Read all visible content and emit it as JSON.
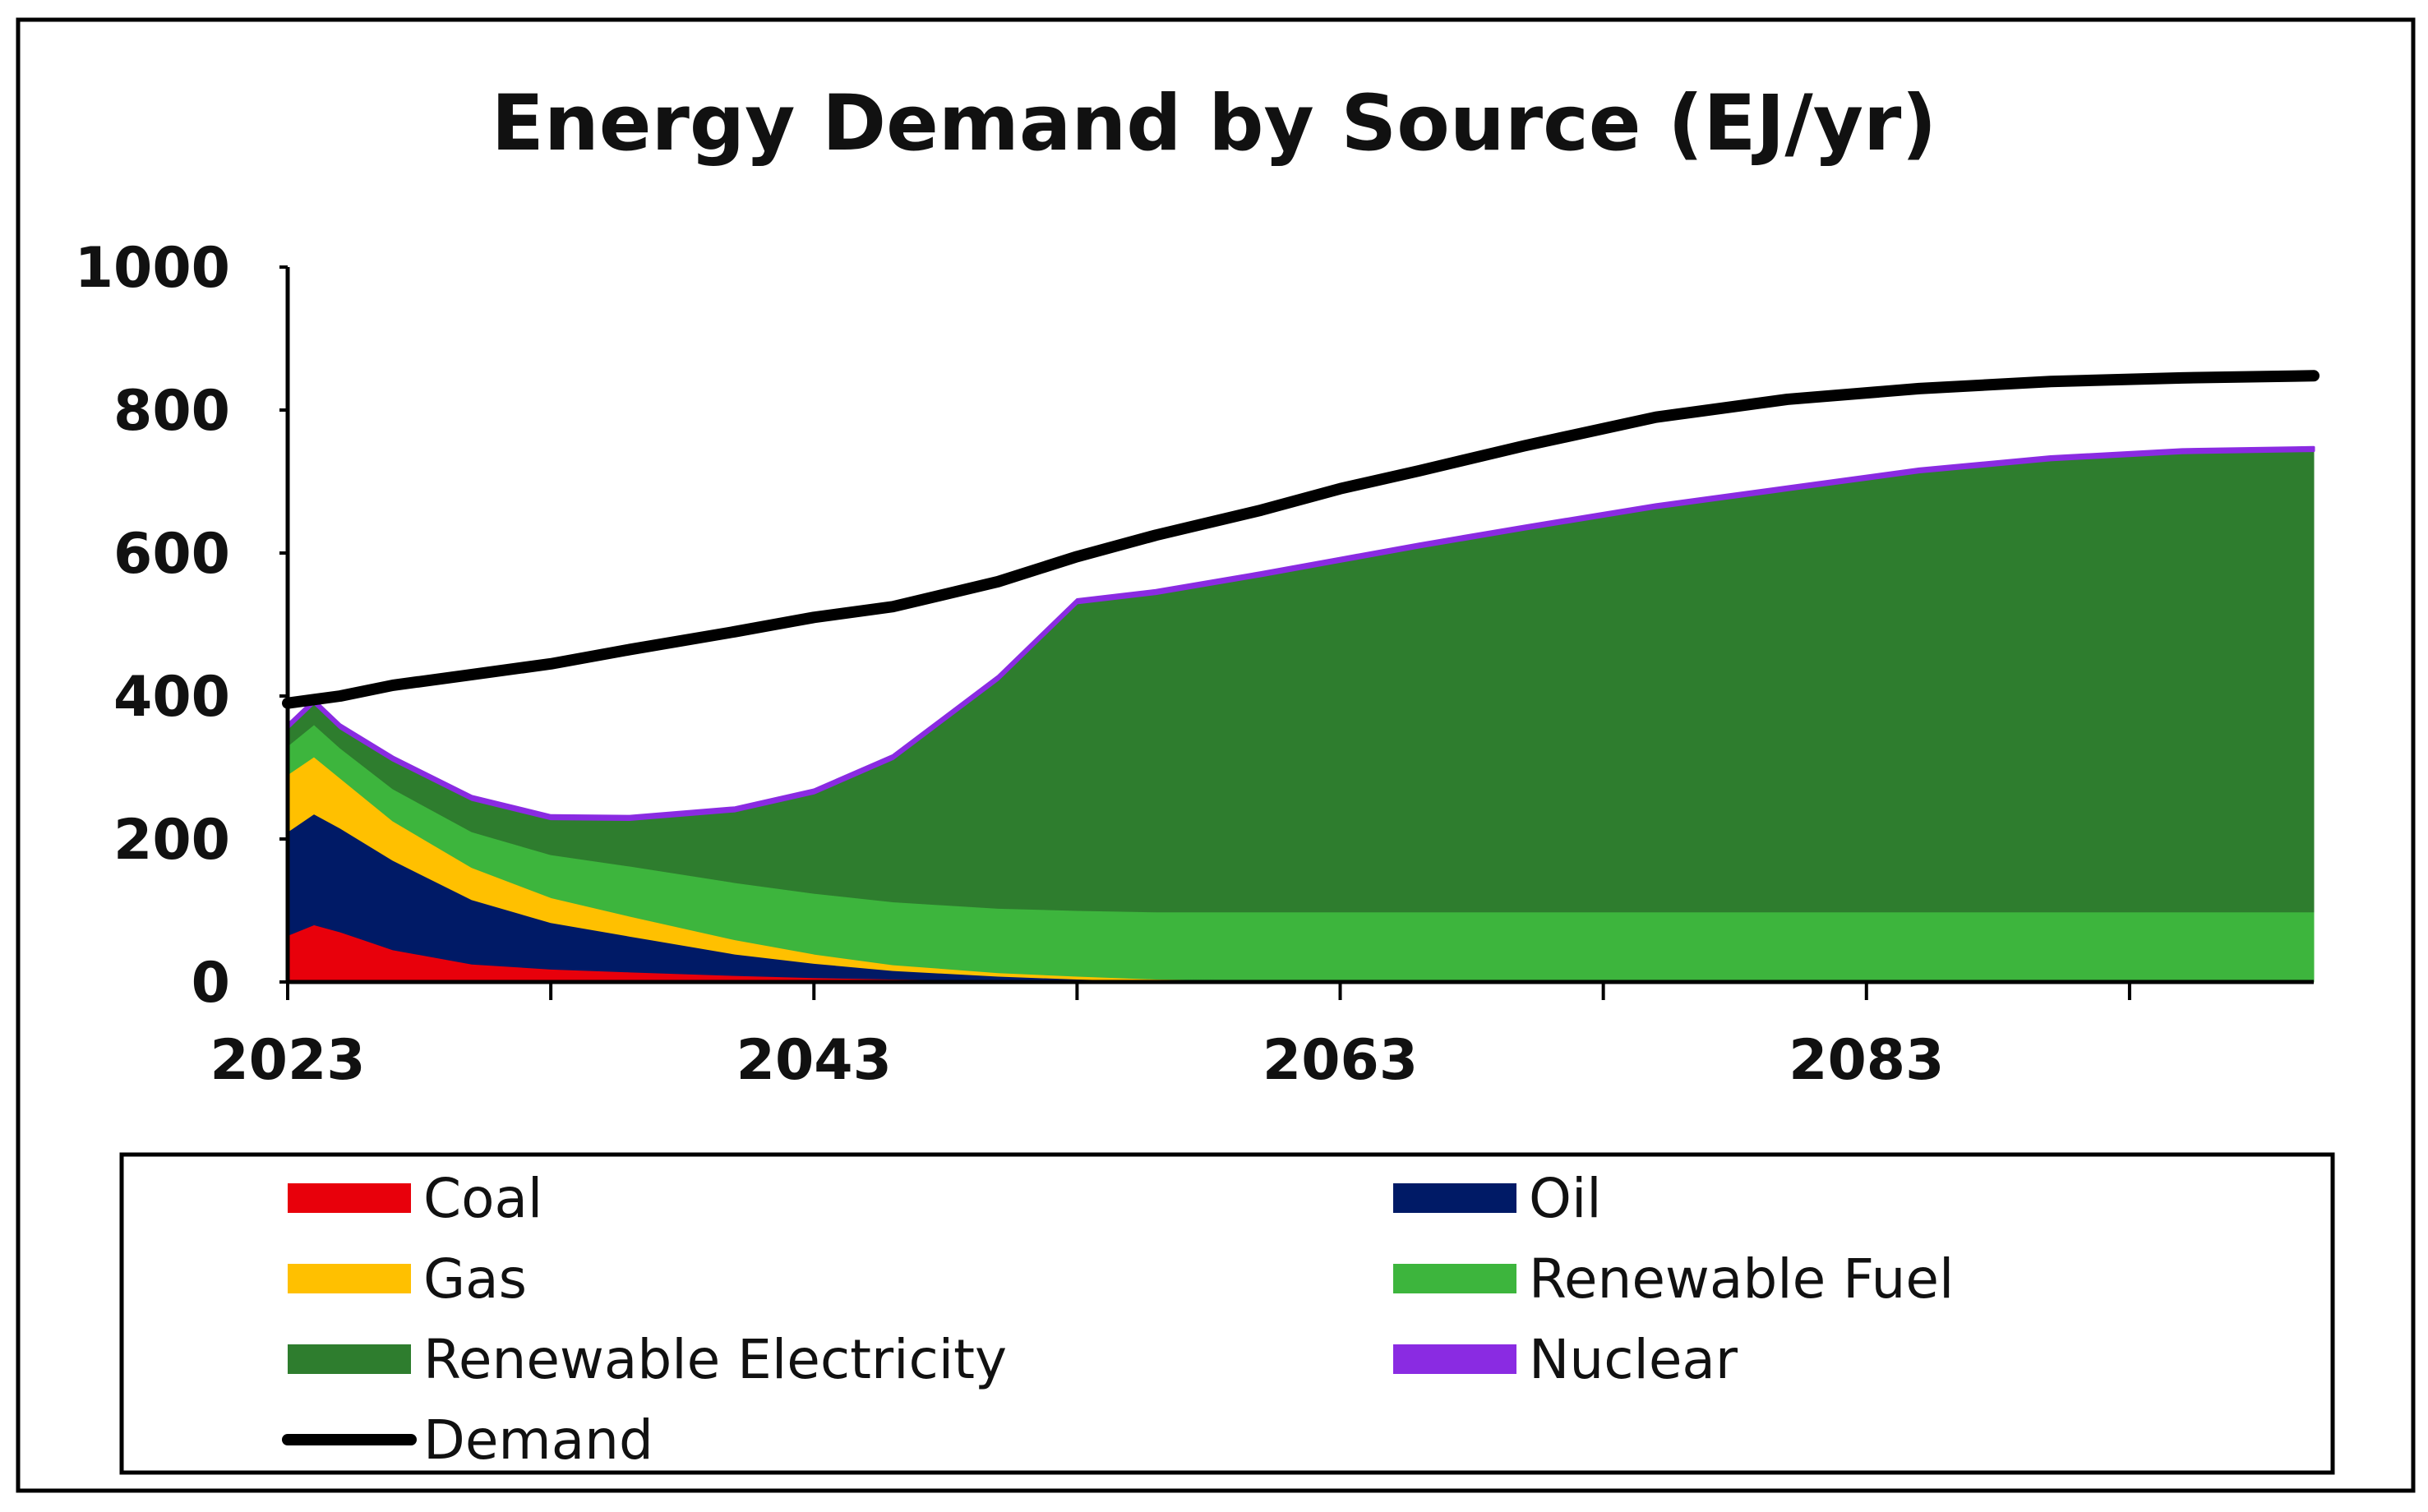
{
  "chart_data": {
    "type": "area",
    "title": "Energy Demand by Source (EJ/yr)",
    "xlabel": "",
    "ylabel": "",
    "xlim": [
      2023,
      2100
    ],
    "ylim": [
      0,
      1000
    ],
    "x_ticks": [
      2023,
      2043,
      2063,
      2083
    ],
    "y_ticks": [
      0,
      200,
      400,
      600,
      800,
      1000
    ],
    "grid": false,
    "legend_position": "bottom",
    "x": [
      2023,
      2024,
      2025,
      2027,
      2030,
      2033,
      2036,
      2040,
      2043,
      2046,
      2050,
      2053,
      2056,
      2060,
      2063,
      2066,
      2070,
      2075,
      2080,
      2085,
      2090,
      2095,
      2100
    ],
    "series": [
      {
        "name": "Coal",
        "color": "#e8000b",
        "kind": "area",
        "values": [
          65,
          80,
          70,
          45,
          25,
          18,
          14,
          9,
          6,
          4,
          2,
          1,
          0,
          0,
          0,
          0,
          0,
          0,
          0,
          0,
          0,
          0,
          0
        ]
      },
      {
        "name": "Oil",
        "color": "#001a66",
        "kind": "area",
        "values": [
          145,
          155,
          145,
          125,
          90,
          65,
          50,
          30,
          20,
          12,
          6,
          3,
          1,
          0,
          0,
          0,
          0,
          0,
          0,
          0,
          0,
          0,
          0
        ]
      },
      {
        "name": "Gas",
        "color": "#ffc000",
        "kind": "area",
        "values": [
          80,
          80,
          70,
          55,
          45,
          35,
          28,
          20,
          13,
          8,
          5,
          4,
          3,
          2,
          1,
          0,
          0,
          0,
          0,
          0,
          0,
          0,
          0
        ]
      },
      {
        "name": "Renewable Fuel",
        "color": "#3db53d",
        "kind": "area",
        "values": [
          40,
          45,
          42,
          45,
          50,
          60,
          70,
          80,
          85,
          88,
          90,
          92,
          94,
          96,
          97,
          98,
          98,
          98,
          98,
          98,
          98,
          98,
          98
        ]
      },
      {
        "name": "Renewable Electricity",
        "color": "#2e7d2e",
        "kind": "area",
        "values": [
          25,
          30,
          28,
          40,
          45,
          50,
          65,
          100,
          140,
          200,
          320,
          430,
          445,
          470,
          490,
          510,
          535,
          565,
          590,
          615,
          632,
          642,
          645
        ]
      },
      {
        "name": "Nuclear",
        "color": "#8a2be2",
        "kind": "area",
        "values": [
          5,
          5,
          5,
          5,
          5,
          5,
          5,
          5,
          5,
          5,
          5,
          5,
          5,
          5,
          5,
          5,
          5,
          5,
          5,
          5,
          5,
          5,
          5
        ]
      },
      {
        "name": "Demand",
        "color": "#000000",
        "kind": "line",
        "values": [
          390,
          395,
          400,
          415,
          430,
          445,
          465,
          490,
          510,
          525,
          560,
          595,
          625,
          660,
          690,
          715,
          750,
          790,
          815,
          830,
          840,
          845,
          848
        ]
      }
    ]
  }
}
